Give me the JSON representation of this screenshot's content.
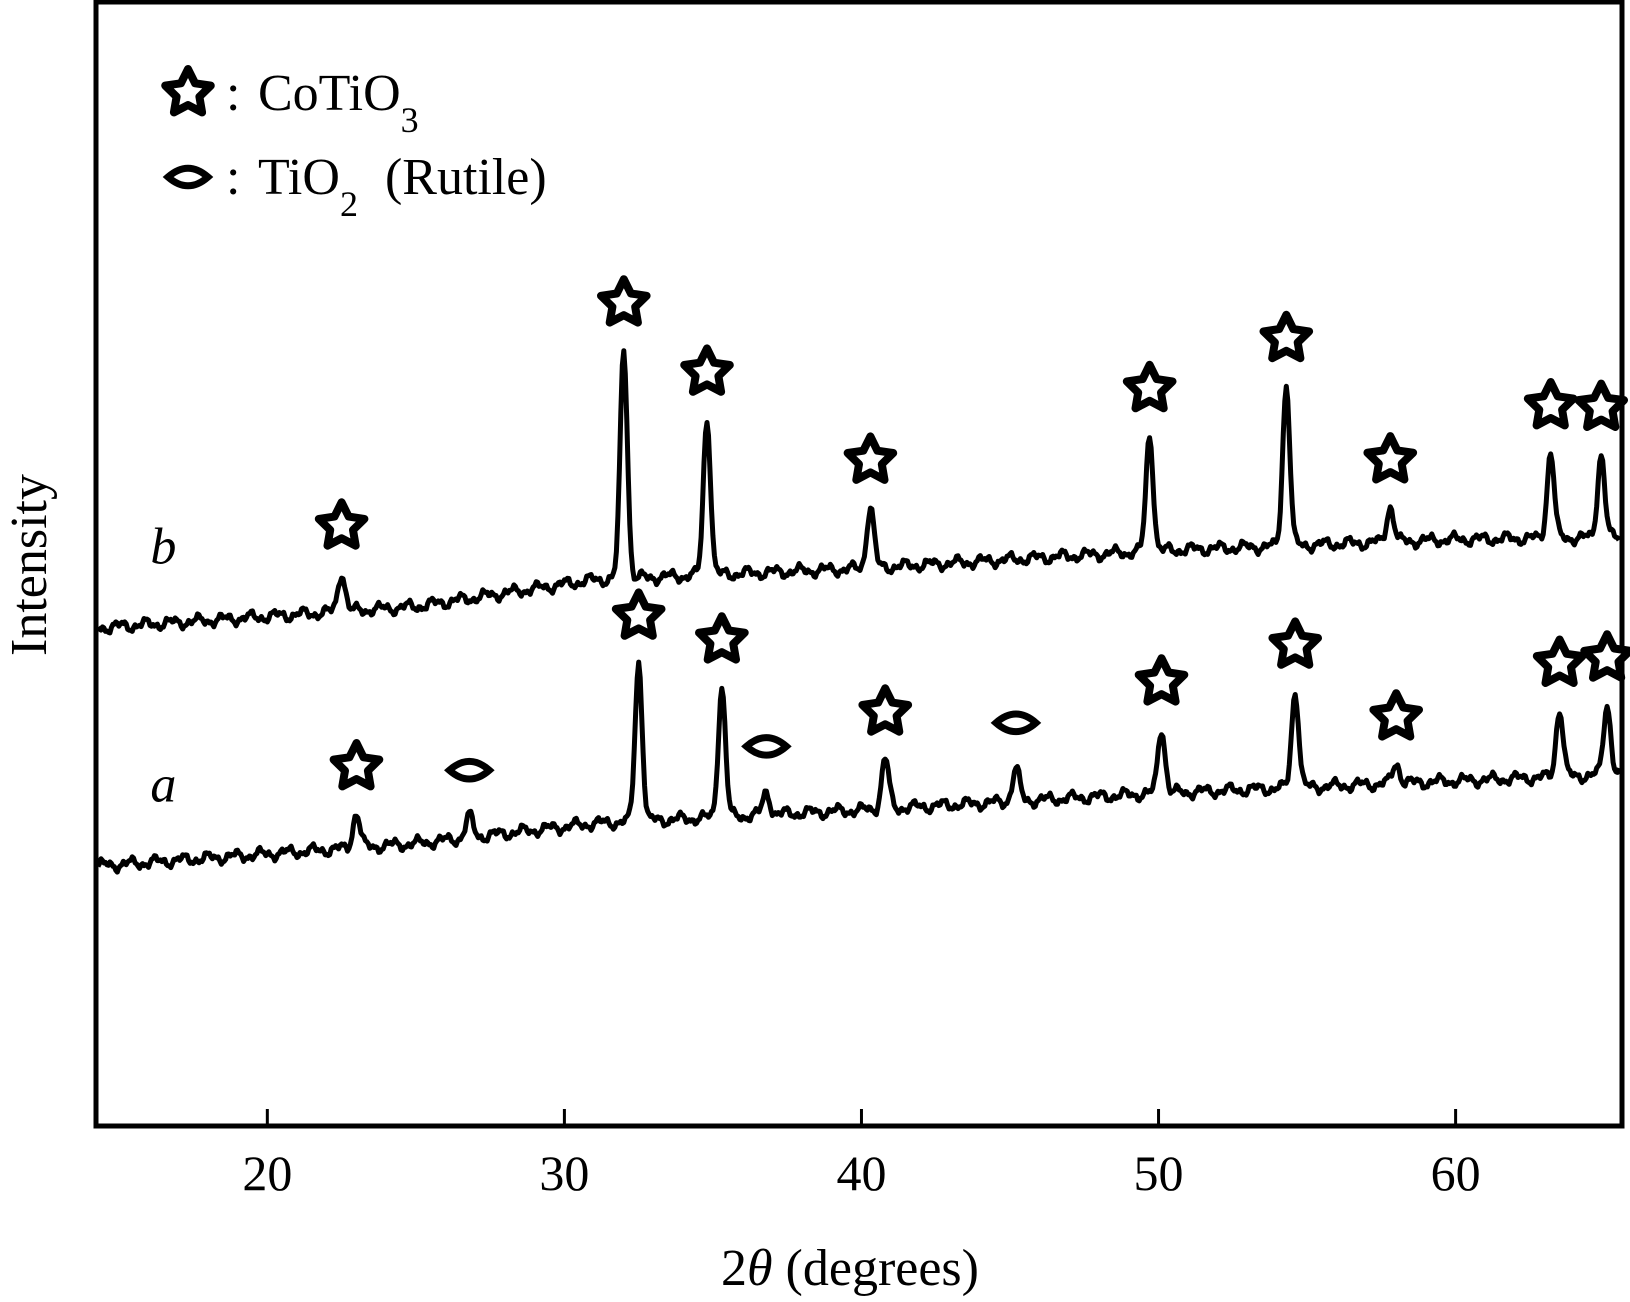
{
  "chart_data": {
    "type": "line",
    "xlabel_prefix": "2",
    "xlabel_symbol": "θ",
    "xlabel_suffix": " (degrees)",
    "ylabel": "Intensity",
    "xlim": [
      14.3,
      65.5
    ],
    "ylim": [
      0,
      100
    ],
    "x_ticks": [
      20,
      30,
      40,
      50,
      60
    ],
    "y_ticks_shown": false,
    "grid": false,
    "legend": {
      "placement": "top-left",
      "entries": [
        {
          "marker": "star",
          "separator": ":",
          "base": "CoTiO",
          "sub": "3",
          "suffix": ""
        },
        {
          "marker": "diamond",
          "separator": ":",
          "base": "TiO",
          "sub": "2",
          "suffix": " (Rutile)"
        }
      ]
    },
    "series": [
      {
        "label": "b",
        "baseline": [
          [
            14.3,
            44.3
          ],
          [
            25,
            46.2
          ],
          [
            31,
            48.6
          ],
          [
            40,
            49.6
          ],
          [
            50,
            51.2
          ],
          [
            60,
            52.2
          ],
          [
            65.5,
            52.4
          ]
        ],
        "peaks": [
          {
            "x": 22.5,
            "height": 3.5,
            "phase": "CoTiO3"
          },
          {
            "x": 32.0,
            "height": 20.5,
            "phase": "CoTiO3"
          },
          {
            "x": 34.8,
            "height": 14.0,
            "phase": "CoTiO3"
          },
          {
            "x": 40.3,
            "height": 5.5,
            "phase": "CoTiO3"
          },
          {
            "x": 49.7,
            "height": 10.4,
            "phase": "CoTiO3"
          },
          {
            "x": 54.3,
            "height": 14.4,
            "phase": "CoTiO3"
          },
          {
            "x": 57.8,
            "height": 3.2,
            "phase": "CoTiO3"
          },
          {
            "x": 63.2,
            "height": 7.7,
            "phase": "CoTiO3"
          },
          {
            "x": 64.9,
            "height": 7.5,
            "phase": "CoTiO3"
          }
        ]
      },
      {
        "label": "a",
        "baseline": [
          [
            14.3,
            23.0
          ],
          [
            25,
            25.0
          ],
          [
            31,
            26.8
          ],
          [
            40,
            28.0
          ],
          [
            50,
            29.5
          ],
          [
            60,
            30.6
          ],
          [
            65.5,
            31.2
          ]
        ],
        "peaks": [
          {
            "x": 23.0,
            "height": 3.1,
            "phase": "CoTiO3"
          },
          {
            "x": 26.8,
            "height": 1.9,
            "phase": "TiO2"
          },
          {
            "x": 32.5,
            "height": 14.2,
            "phase": "CoTiO3"
          },
          {
            "x": 35.3,
            "height": 11.7,
            "phase": "CoTiO3"
          },
          {
            "x": 36.8,
            "height": 2.0,
            "phase": "TiO2"
          },
          {
            "x": 40.8,
            "height": 4.5,
            "phase": "CoTiO3"
          },
          {
            "x": 45.2,
            "height": 2.9,
            "phase": "TiO2"
          },
          {
            "x": 50.1,
            "height": 5.8,
            "phase": "CoTiO3"
          },
          {
            "x": 54.6,
            "height": 8.6,
            "phase": "CoTiO3"
          },
          {
            "x": 58.0,
            "height": 1.8,
            "phase": "CoTiO3"
          },
          {
            "x": 63.5,
            "height": 6.0,
            "phase": "CoTiO3"
          },
          {
            "x": 65.1,
            "height": 6.3,
            "phase": "CoTiO3"
          }
        ]
      }
    ]
  }
}
